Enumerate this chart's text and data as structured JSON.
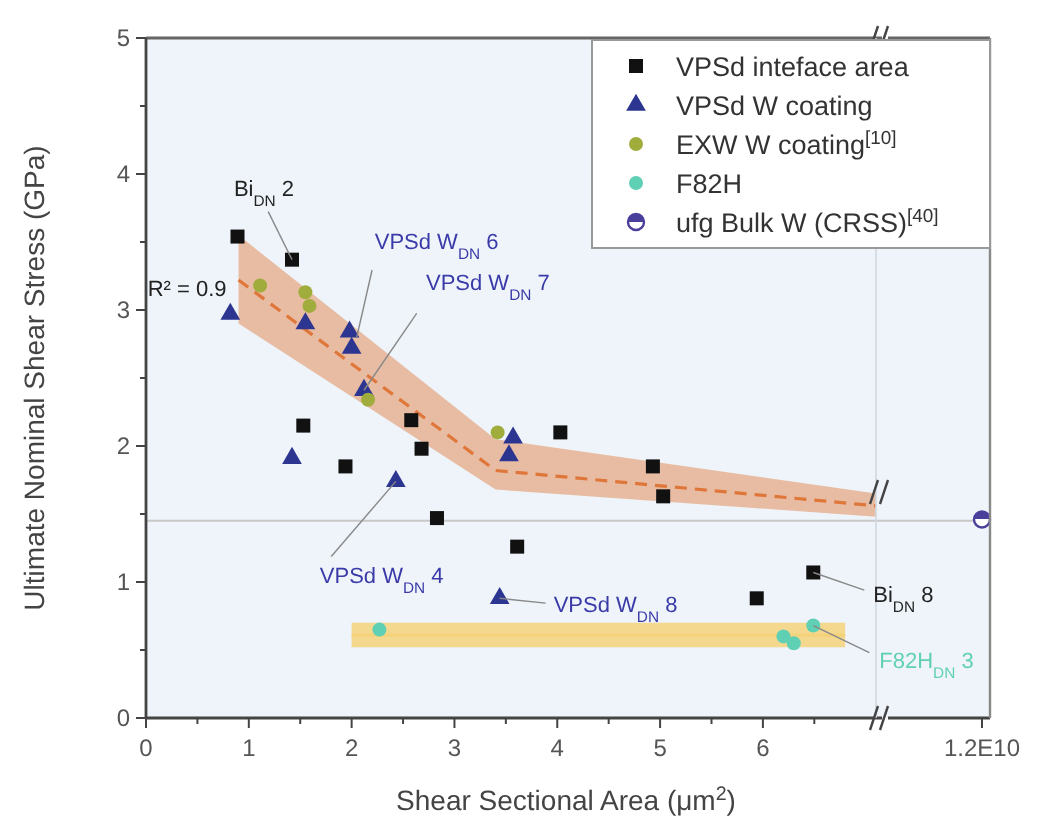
{
  "chart_data": [
    {
      "type": "scatter",
      "xlabel": "Shear Sectional Area (μm$^{2}$)",
      "ylabel": "Ultimate Nominal Shear Stress (GPa)",
      "xlim": [
        0,
        7.1
      ],
      "ylim": [
        0,
        5
      ],
      "xticks": [
        0,
        {
          "value": 0.5,
          "label": null
        },
        1,
        {
          "value": 1.5,
          "label": null
        },
        2,
        {
          "value": 2.5,
          "label": null
        },
        3,
        {
          "value": 3.5,
          "label": null
        },
        4,
        {
          "value": 4.5,
          "label": null
        },
        5,
        {
          "value": 5.5,
          "label": null
        },
        6,
        {
          "value": 6.5,
          "label": null
        }
      ],
      "yticks": [
        0,
        {
          "value": 0.5,
          "label": null
        },
        1,
        {
          "value": 1.5,
          "label": null
        },
        2,
        {
          "value": 2.5,
          "label": null
        },
        3,
        {
          "value": 3.5,
          "label": null
        },
        4,
        {
          "value": 4.5,
          "label": null
        },
        5
      ],
      "legend": "top right",
      "ref_lines": [
        {
          "axis": "y",
          "value": 1.45,
          "color": "#c8c8c8"
        }
      ],
      "series": [
        {
          "type": "line",
          "line_style": "solid",
          "color": "#f3d27a",
          "x": [
            2,
            6.8
          ],
          "values": [
            0.61,
            0.61
          ],
          "lower": [
            0.52,
            0.52
          ],
          "upper": [
            0.7,
            0.7
          ]
        },
        {
          "type": "line",
          "line_style": "dashed",
          "color": "#e0773a",
          "x": [
            0.9,
            3.4,
            7.1
          ],
          "values": [
            3.22,
            1.82,
            1.56
          ],
          "lower": [
            2.9,
            1.68,
            1.48
          ],
          "upper": [
            3.55,
            2.05,
            1.65
          ]
        },
        {
          "name": "VPSd inteface area",
          "marker": "square",
          "color": "#111111",
          "x": [
            0.89,
            1.42,
            1.53,
            1.94,
            2.58,
            2.68,
            2.83,
            3.61,
            4.03,
            4.93,
            5.03,
            5.94,
            6.49
          ],
          "values": [
            3.54,
            3.37,
            2.15,
            1.85,
            2.19,
            1.98,
            1.47,
            1.26,
            2.1,
            1.85,
            1.63,
            0.88,
            1.07
          ]
        },
        {
          "name": "VPSd W coating",
          "marker": "triangle",
          "color": "#2c3590",
          "x": [
            0.82,
            1.55,
            1.98,
            2.0,
            2.12,
            1.42,
            2.43,
            3.57,
            3.53,
            3.44
          ],
          "values": [
            2.97,
            2.9,
            2.84,
            2.72,
            2.41,
            1.91,
            1.74,
            2.06,
            1.93,
            0.88
          ]
        },
        {
          "name": "EXW W coating$^{[10]}$",
          "marker": "circle",
          "color": "#a0ad3c",
          "x": [
            1.11,
            1.55,
            1.59,
            2.16,
            3.42
          ],
          "values": [
            3.18,
            3.13,
            3.03,
            2.34,
            2.1
          ]
        },
        {
          "name": "F82H",
          "marker": "circle",
          "color": "#5fd0b4",
          "x": [
            2.27,
            6.2,
            6.3,
            6.49
          ],
          "values": [
            0.65,
            0.6,
            0.55,
            0.68
          ]
        }
      ],
      "annotations": [
        {
          "text": "Bi$_{DN}$ 2",
          "x": 1.42,
          "y": 3.37
        },
        {
          "text": "R² = 0.9",
          "x": 0.9,
          "y": 3.22
        },
        {
          "text": "VPSd W$_{DN}$ 6",
          "x": 2.05,
          "y": 2.8
        },
        {
          "text": "VPSd W$_{DN}$ 7",
          "x": 2.12,
          "y": 2.41
        },
        {
          "text": "VPSd W$_{DN}$ 4",
          "x": 2.43,
          "y": 1.74
        },
        {
          "text": "VPSd W$_{DN}$ 8",
          "x": 3.44,
          "y": 0.88
        },
        {
          "text": "Bi$_{DN}$ 8",
          "x": 6.49,
          "y": 1.07
        },
        {
          "text": "F82H$_{DN}$ 3",
          "x": 6.49,
          "y": 0.68
        }
      ]
    },
    {
      "type": "scatter",
      "categories": [
        "1.2E10"
      ],
      "ylim": [
        0,
        5
      ],
      "tick_labels": "x",
      "ref_lines": [
        {
          "axis": "y",
          "value": 1.45,
          "color": "#c8c8c8"
        }
      ],
      "series": [
        {
          "name": "ufg Bulk W (CRSS)$^{[40]}$",
          "marker": "halfcircle",
          "color": "#4a3f9a",
          "values": [
            1.46
          ]
        }
      ]
    }
  ]
}
